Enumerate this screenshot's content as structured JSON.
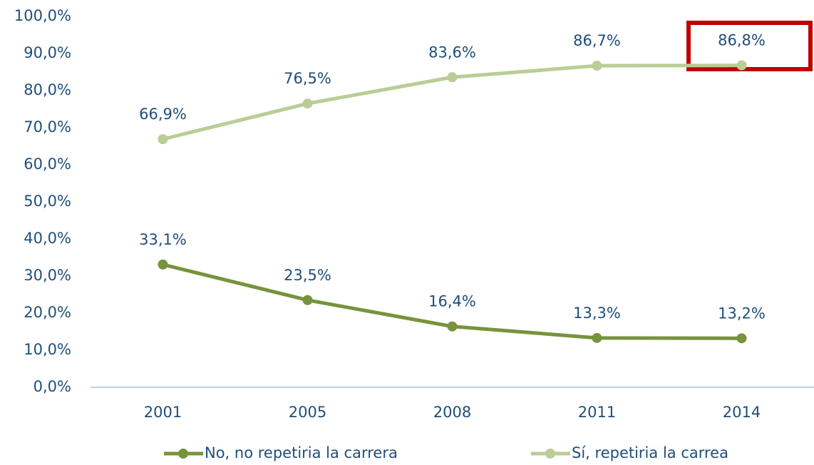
{
  "chart_data": {
    "type": "line",
    "categories": [
      "2001",
      "2005",
      "2008",
      "2011",
      "2014"
    ],
    "series": [
      {
        "name": "No, no repetiria la carrera",
        "color": "#77933c",
        "values": [
          33.1,
          23.5,
          16.4,
          13.3,
          13.2
        ],
        "value_labels": [
          "33,1%",
          "23,5%",
          "16,4%",
          "13,3%",
          "13,2%"
        ]
      },
      {
        "name": "Sí, repetiria la carrea",
        "color": "#b9cd96",
        "values": [
          66.9,
          76.5,
          83.6,
          86.7,
          86.8
        ],
        "value_labels": [
          "66,9%",
          "76,5%",
          "83,6%",
          "86,7%",
          "86,8%"
        ]
      }
    ],
    "ylim": [
      0,
      100
    ],
    "yticks": [
      {
        "value": 0,
        "label": "0,0%"
      },
      {
        "value": 10,
        "label": "10,0%"
      },
      {
        "value": 20,
        "label": "20,0%"
      },
      {
        "value": 30,
        "label": "30,0%"
      },
      {
        "value": 40,
        "label": "40,0%"
      },
      {
        "value": 50,
        "label": "50,0%"
      },
      {
        "value": 60,
        "label": "60,0%"
      },
      {
        "value": 70,
        "label": "70,0%"
      },
      {
        "value": 80,
        "label": "80,0%"
      },
      {
        "value": 90,
        "label": "90,0%"
      },
      {
        "value": 100,
        "label": "100,0%"
      }
    ],
    "grid": false,
    "legend": "bottom"
  }
}
